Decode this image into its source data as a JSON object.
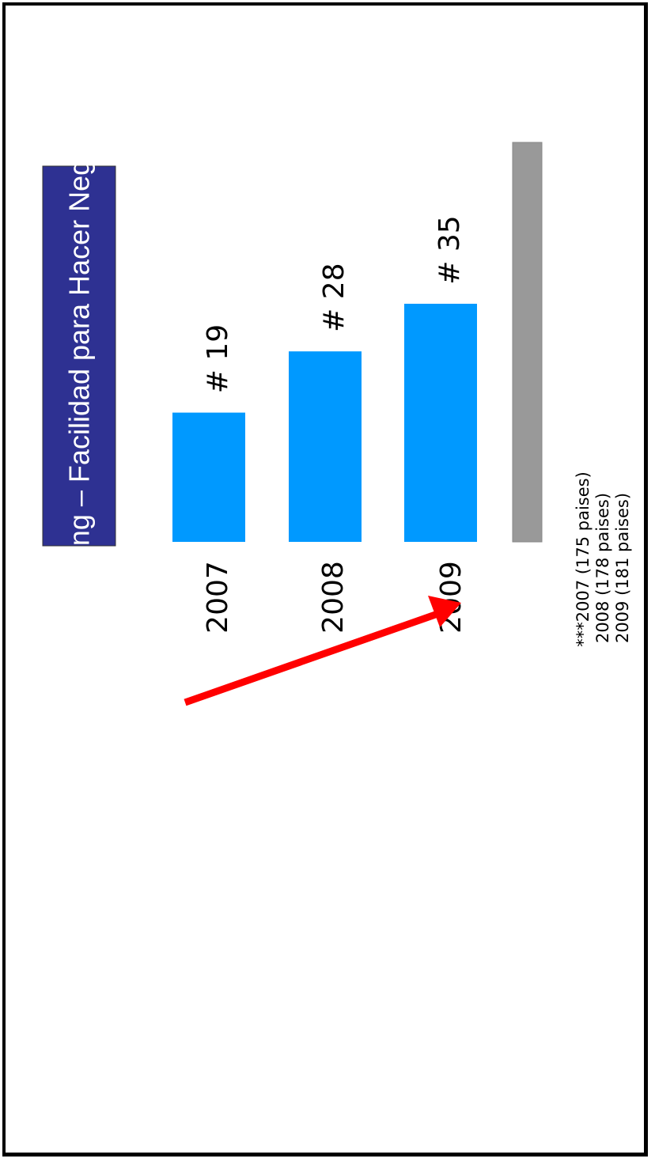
{
  "colors": {
    "title_box": "#2e3192",
    "title_text": "#ffffff",
    "bar": "#0099ff",
    "baseline": "#999999",
    "arrow": "#ff0000",
    "text": "#000000"
  },
  "chart_data": {
    "type": "bar",
    "orientation": "horizontal",
    "title": "Ranking – Facilidad para Hacer Negocios",
    "categories": [
      "2007",
      "2008",
      "2009"
    ],
    "values": [
      19,
      28,
      35
    ],
    "value_labels": [
      "# 19",
      "# 28",
      "# 35"
    ],
    "trend_arrow": "increasing",
    "grid": false,
    "notes": [
      "***2007 (175 paises)",
      "2008 (178 paises)",
      "2009 (181 paises)"
    ]
  }
}
